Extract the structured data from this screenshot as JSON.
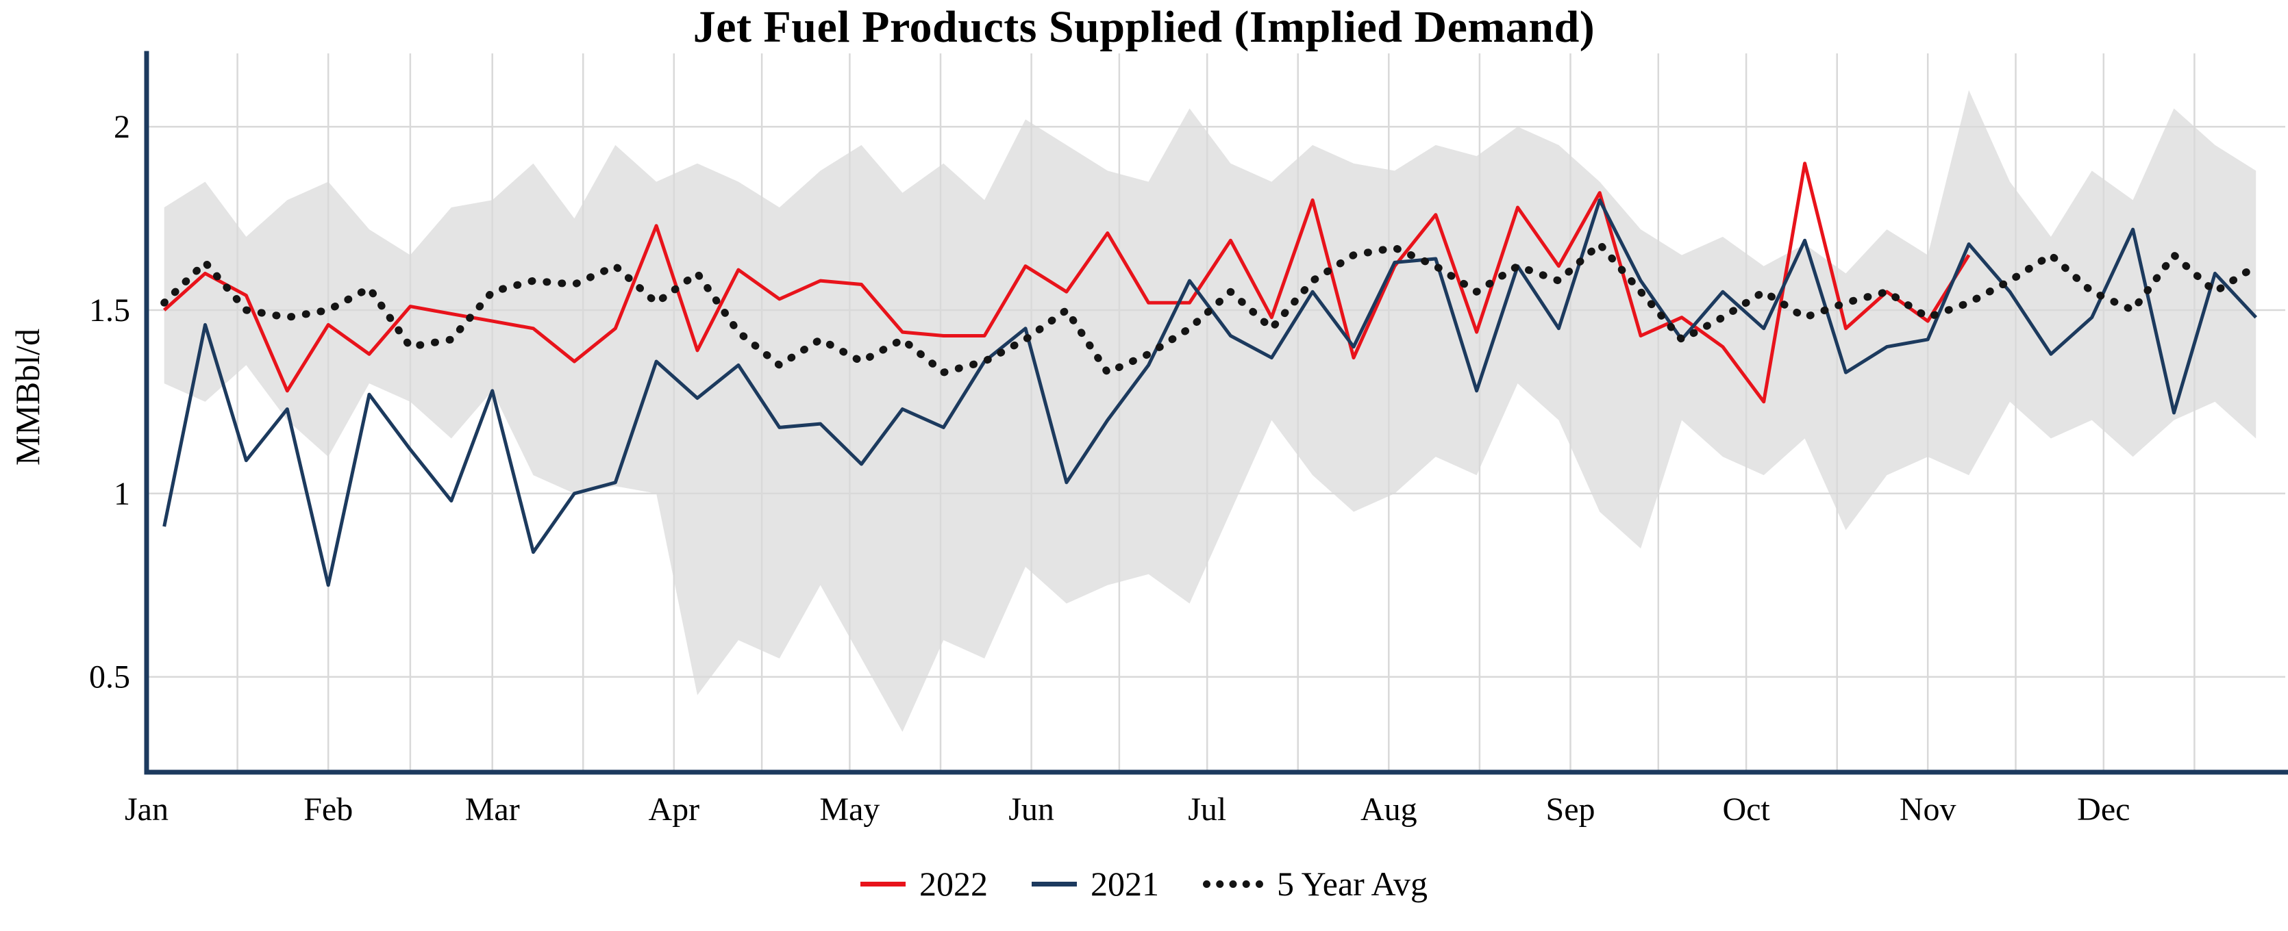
{
  "title": "Jet Fuel Products Supplied (Implied Demand)",
  "ylabel": "MMBbl/d",
  "colors": {
    "axis": "#1c3a5e",
    "gridline": "#d9d9d9",
    "band": "#e4e4e4",
    "series_2022": "#e8131b",
    "series_2021": "#1c3a5e",
    "series_avg": "#141414"
  },
  "legend": {
    "items": [
      {
        "label": "2022",
        "color": "#e8131b",
        "style": "solid"
      },
      {
        "label": "2021",
        "color": "#1c3a5e",
        "style": "solid"
      },
      {
        "label": "5 Year Avg",
        "color": "#141414",
        "style": "dotted"
      }
    ]
  },
  "chart_data": {
    "type": "line",
    "title": "Jet Fuel Products Supplied (Implied Demand)",
    "xlabel": "",
    "ylabel": "MMBbl/d",
    "x_unit": "weekly, Jan through Dec",
    "months": [
      "Jan",
      "Feb",
      "Mar",
      "Apr",
      "May",
      "Jun",
      "Jul",
      "Aug",
      "Sep",
      "Oct",
      "Nov",
      "Dec"
    ],
    "month_start_days": [
      0,
      31,
      59,
      90,
      120,
      151,
      181,
      212,
      243,
      273,
      304,
      334
    ],
    "y_ticks": [
      0.5,
      1,
      1.5,
      2
    ],
    "ylim": [
      0.24,
      2.2
    ],
    "grid": true,
    "legend_position": "bottom",
    "series": [
      {
        "name": "2022",
        "color": "#e8131b",
        "dash": "solid",
        "values": [
          1.5,
          1.6,
          1.54,
          1.28,
          1.46,
          1.38,
          1.51,
          1.49,
          1.47,
          1.45,
          1.36,
          1.45,
          1.73,
          1.39,
          1.61,
          1.53,
          1.58,
          1.57,
          1.44,
          1.43,
          1.43,
          1.62,
          1.55,
          1.71,
          1.52,
          1.52,
          1.69,
          1.48,
          1.8,
          1.37,
          1.62,
          1.76,
          1.44,
          1.78,
          1.62,
          1.82,
          1.43,
          1.48,
          1.4,
          1.25,
          1.9,
          1.45,
          1.55,
          1.47,
          1.65
        ]
      },
      {
        "name": "2021",
        "color": "#1c3a5e",
        "dash": "solid",
        "values": [
          0.91,
          1.46,
          1.09,
          1.23,
          0.75,
          1.27,
          1.12,
          0.98,
          1.28,
          0.84,
          1.0,
          1.03,
          1.36,
          1.26,
          1.35,
          1.18,
          1.19,
          1.08,
          1.23,
          1.18,
          1.36,
          1.45,
          1.03,
          1.2,
          1.35,
          1.58,
          1.43,
          1.37,
          1.55,
          1.4,
          1.63,
          1.64,
          1.28,
          1.62,
          1.45,
          1.8,
          1.58,
          1.42,
          1.55,
          1.45,
          1.69,
          1.33,
          1.4,
          1.42,
          1.68,
          1.55,
          1.38,
          1.48,
          1.72,
          1.22,
          1.6,
          1.48
        ]
      },
      {
        "name": "5 Year Avg",
        "color": "#141414",
        "dash": "dotted",
        "values": [
          1.52,
          1.63,
          1.5,
          1.48,
          1.5,
          1.56,
          1.4,
          1.42,
          1.55,
          1.58,
          1.57,
          1.62,
          1.52,
          1.6,
          1.44,
          1.35,
          1.42,
          1.36,
          1.42,
          1.33,
          1.36,
          1.42,
          1.5,
          1.33,
          1.38,
          1.45,
          1.55,
          1.45,
          1.58,
          1.65,
          1.67,
          1.62,
          1.55,
          1.62,
          1.58,
          1.68,
          1.55,
          1.42,
          1.48,
          1.55,
          1.48,
          1.52,
          1.55,
          1.48,
          1.52,
          1.58,
          1.65,
          1.55,
          1.5,
          1.65,
          1.55,
          1.62
        ]
      }
    ],
    "band": {
      "name": "5 Year Range",
      "color": "#e4e4e4",
      "upper": [
        1.78,
        1.85,
        1.7,
        1.8,
        1.85,
        1.72,
        1.65,
        1.78,
        1.8,
        1.9,
        1.75,
        1.95,
        1.85,
        1.9,
        1.85,
        1.78,
        1.88,
        1.95,
        1.82,
        1.9,
        1.8,
        2.02,
        1.95,
        1.88,
        1.85,
        2.05,
        1.9,
        1.85,
        1.95,
        1.9,
        1.88,
        1.95,
        1.92,
        2.0,
        1.95,
        1.85,
        1.72,
        1.65,
        1.7,
        1.62,
        1.68,
        1.6,
        1.72,
        1.65,
        2.1,
        1.85,
        1.7,
        1.88,
        1.8,
        2.05,
        1.95,
        1.88
      ],
      "lower": [
        1.3,
        1.25,
        1.35,
        1.2,
        1.1,
        1.3,
        1.25,
        1.15,
        1.28,
        1.05,
        1.0,
        1.02,
        1.0,
        0.45,
        0.6,
        0.55,
        0.75,
        0.55,
        0.35,
        0.6,
        0.55,
        0.8,
        0.7,
        0.75,
        0.78,
        0.7,
        0.95,
        1.2,
        1.05,
        0.95,
        1.0,
        1.1,
        1.05,
        1.3,
        1.2,
        0.95,
        0.85,
        1.2,
        1.1,
        1.05,
        1.15,
        0.9,
        1.05,
        1.1,
        1.05,
        1.25,
        1.15,
        1.2,
        1.1,
        1.2,
        1.25,
        1.15
      ]
    }
  }
}
